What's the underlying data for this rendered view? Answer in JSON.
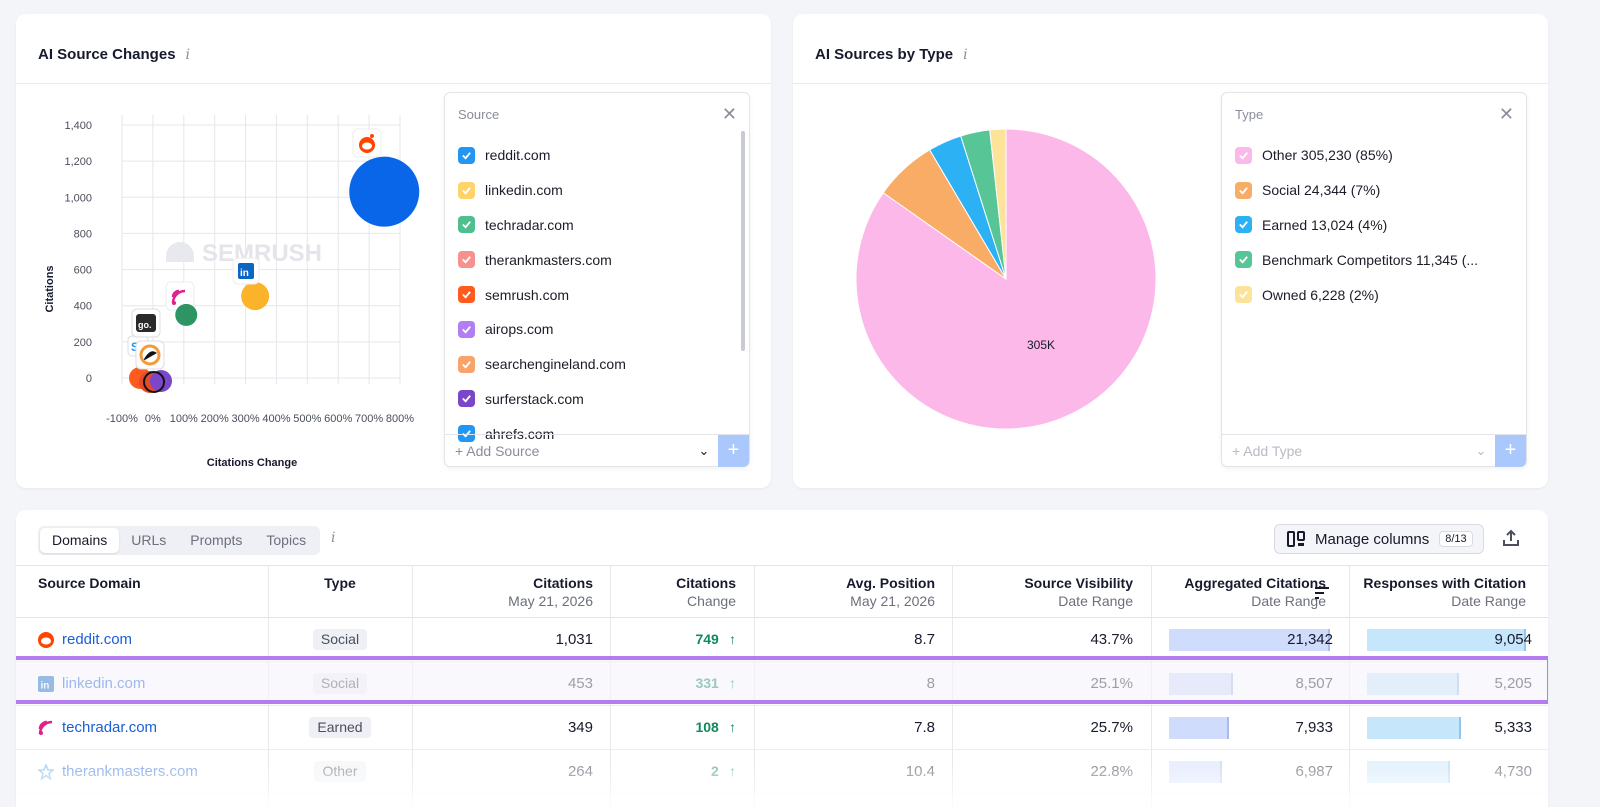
{
  "source_changes": {
    "title": "AI Source Changes",
    "info_icon": "i",
    "y_axis_label": "Citations",
    "x_axis_label": "Citations Change",
    "y_ticks": [
      "1,400",
      "1,200",
      "1,000",
      "800",
      "600",
      "400",
      "200",
      "0"
    ],
    "x_ticks": [
      "-100%",
      "0%",
      "100%",
      "200%",
      "300%",
      "400%",
      "500%",
      "600%",
      "700%",
      "800%"
    ],
    "watermark": "SEMRUSH",
    "legend_title": "Source",
    "legend_items": [
      {
        "label": "reddit.com",
        "color": "#2196f3"
      },
      {
        "label": "linkedin.com",
        "color": "#fdd36a"
      },
      {
        "label": "techradar.com",
        "color": "#4fbf8f"
      },
      {
        "label": "therankmasters.com",
        "color": "#f7918f"
      },
      {
        "label": "semrush.com",
        "color": "#ff5b1f"
      },
      {
        "label": "airops.com",
        "color": "#b17ef4"
      },
      {
        "label": "searchengineland.com",
        "color": "#f7a36a"
      },
      {
        "label": "surferstack.com",
        "color": "#7b46c8"
      },
      {
        "label": "ahrefs.com",
        "color": "#2196f3"
      }
    ],
    "add_label": "+ Add Source",
    "add_button": "+"
  },
  "sources_by_type": {
    "title": "AI Sources by Type",
    "info_icon": "i",
    "pie_center_label": "305K",
    "legend_title": "Type",
    "legend_items": [
      {
        "label": "Other 305,230 (85%)",
        "color": "#fcb8e8"
      },
      {
        "label": "Social 24,344 (7%)",
        "color": "#f9ac66"
      },
      {
        "label": "Earned 13,024 (4%)",
        "color": "#2cb1f5"
      },
      {
        "label": "Benchmark Competitors 11,345 (...",
        "color": "#58c596"
      },
      {
        "label": "Owned 6,228 (2%)",
        "color": "#fde29a"
      }
    ],
    "add_label": "+ Add Type",
    "add_button": "+"
  },
  "chart_data": [
    {
      "type": "scatter",
      "title": "AI Source Changes",
      "xlabel": "Citations Change",
      "ylabel": "Citations",
      "x_unit": "%",
      "xlim": [
        -100,
        800
      ],
      "ylim": [
        0,
        1400
      ],
      "series": [
        {
          "name": "reddit.com",
          "points": [
            {
              "x": 749,
              "y": 1031
            }
          ]
        },
        {
          "name": "linkedin.com",
          "points": [
            {
              "x": 331,
              "y": 453
            }
          ]
        },
        {
          "name": "techradar.com",
          "points": [
            {
              "x": 108,
              "y": 349
            }
          ]
        }
      ]
    },
    {
      "type": "pie",
      "title": "AI Sources by Type",
      "categories": [
        "Other",
        "Social",
        "Earned",
        "Benchmark Competitors",
        "Owned"
      ],
      "values": [
        305230,
        24344,
        13024,
        11345,
        6228
      ],
      "colors": [
        "#fcb8e8",
        "#f9ac66",
        "#2cb1f5",
        "#58c596",
        "#fde29a"
      ],
      "label": "305K"
    }
  ],
  "table": {
    "tabs": [
      "Domains",
      "URLs",
      "Prompts",
      "Topics"
    ],
    "active_tab": "Domains",
    "manage_label": "Manage columns",
    "manage_badge": "8/13",
    "headers": {
      "domain": "Source Domain",
      "type": "Type",
      "citations": "Citations",
      "citations_sub": "May 21, 2026",
      "change": "Citations",
      "change_sub": "Change",
      "avgpos": "Avg. Position",
      "avgpos_sub": "May 21, 2026",
      "visibility": "Source Visibility",
      "visibility_sub": "Date Range",
      "aggregated": "Aggregated Citations",
      "aggregated_sub": "Date Range",
      "responses": "Responses with Citation",
      "responses_sub": "Date Range"
    },
    "rows": [
      {
        "domain": "reddit.com",
        "icon": "reddit-icon",
        "type": "Social",
        "citations": "1,031",
        "change": "749",
        "avgpos": "8.7",
        "visibility": "43.7%",
        "aggregated": "21,342",
        "agg_fill": 1.0,
        "responses": "9,054",
        "resp_fill": 1.0
      },
      {
        "domain": "linkedin.com",
        "icon": "linkedin-icon",
        "type": "Social",
        "citations": "453",
        "change": "331",
        "avgpos": "8",
        "visibility": "25.1%",
        "aggregated": "8,507",
        "agg_fill": 0.4,
        "responses": "5,205",
        "resp_fill": 0.58
      },
      {
        "domain": "techradar.com",
        "icon": "rss-icon",
        "type": "Earned",
        "citations": "349",
        "change": "108",
        "avgpos": "7.8",
        "visibility": "25.7%",
        "aggregated": "7,933",
        "agg_fill": 0.37,
        "responses": "5,333",
        "resp_fill": 0.59
      },
      {
        "domain": "therankmasters.com",
        "icon": "star-icon",
        "type": "Other",
        "citations": "264",
        "change": "2",
        "avgpos": "10.4",
        "visibility": "22.8%",
        "aggregated": "6,987",
        "agg_fill": 0.33,
        "responses": "4,730",
        "resp_fill": 0.52
      }
    ]
  }
}
